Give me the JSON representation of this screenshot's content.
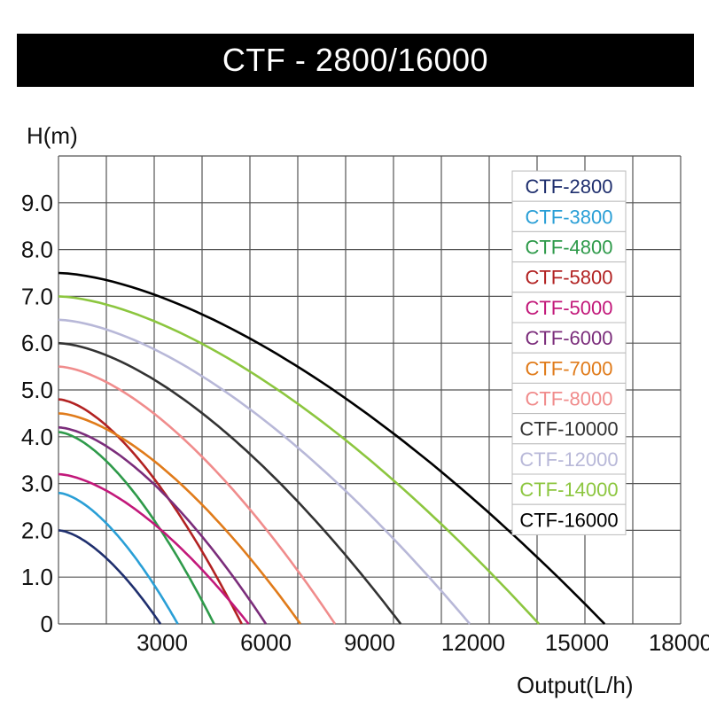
{
  "title": "CTF - 2800/16000",
  "chart_data": {
    "type": "line",
    "title": "CTF - 2800/16000",
    "ylabel": "H(m)",
    "xlabel": "Output(L/h)",
    "xlim": [
      0,
      18000
    ],
    "ylim": [
      0,
      10
    ],
    "x_ticks": [
      {
        "value": 3000,
        "label": "3000"
      },
      {
        "value": 6000,
        "label": "6000"
      },
      {
        "value": 9000,
        "label": "9000"
      },
      {
        "value": 12000,
        "label": "12000"
      },
      {
        "value": 15000,
        "label": "15000"
      },
      {
        "value": 18000,
        "label": "18000"
      }
    ],
    "y_ticks": [
      {
        "value": 0,
        "label": "0"
      },
      {
        "value": 1,
        "label": "1.0"
      },
      {
        "value": 2,
        "label": "2.0"
      },
      {
        "value": 3,
        "label": "3.0"
      },
      {
        "value": 4,
        "label": "4.0"
      },
      {
        "value": 5,
        "label": "5.0"
      },
      {
        "value": 6,
        "label": "6.0"
      },
      {
        "value": 7,
        "label": "7.0"
      },
      {
        "value": 8,
        "label": "8.0"
      },
      {
        "value": 9,
        "label": "9.0"
      }
    ],
    "grid": true,
    "legend_position": "top-right",
    "series": [
      {
        "name": "CTF-2800",
        "color": "#1f2f6e",
        "h_max": 2.0,
        "q_max": 2950
      },
      {
        "name": "CTF-3800",
        "color": "#2a9fd6",
        "h_max": 2.8,
        "q_max": 3450
      },
      {
        "name": "CTF-4800",
        "color": "#2e9a4a",
        "h_max": 4.1,
        "q_max": 4500
      },
      {
        "name": "CTF-5800",
        "color": "#b22222",
        "h_max": 4.8,
        "q_max": 5300
      },
      {
        "name": "CTF-5000",
        "color": "#c2187a",
        "h_max": 3.2,
        "q_max": 5500
      },
      {
        "name": "CTF-6000",
        "color": "#7b2d7b",
        "h_max": 4.2,
        "q_max": 6000
      },
      {
        "name": "CTF-7000",
        "color": "#e07b1a",
        "h_max": 4.5,
        "q_max": 7000
      },
      {
        "name": "CTF-8000",
        "color": "#f08c8c",
        "h_max": 5.5,
        "q_max": 8000
      },
      {
        "name": "CTF-10000",
        "color": "#333333",
        "h_max": 6.0,
        "q_max": 9900
      },
      {
        "name": "CTF-12000",
        "color": "#b8b8d8",
        "h_max": 6.5,
        "q_max": 11900
      },
      {
        "name": "CTF-14000",
        "color": "#8cc63f",
        "h_max": 7.0,
        "q_max": 13900
      },
      {
        "name": "CTF-16000",
        "color": "#000000",
        "h_max": 7.5,
        "q_max": 15800
      }
    ]
  }
}
